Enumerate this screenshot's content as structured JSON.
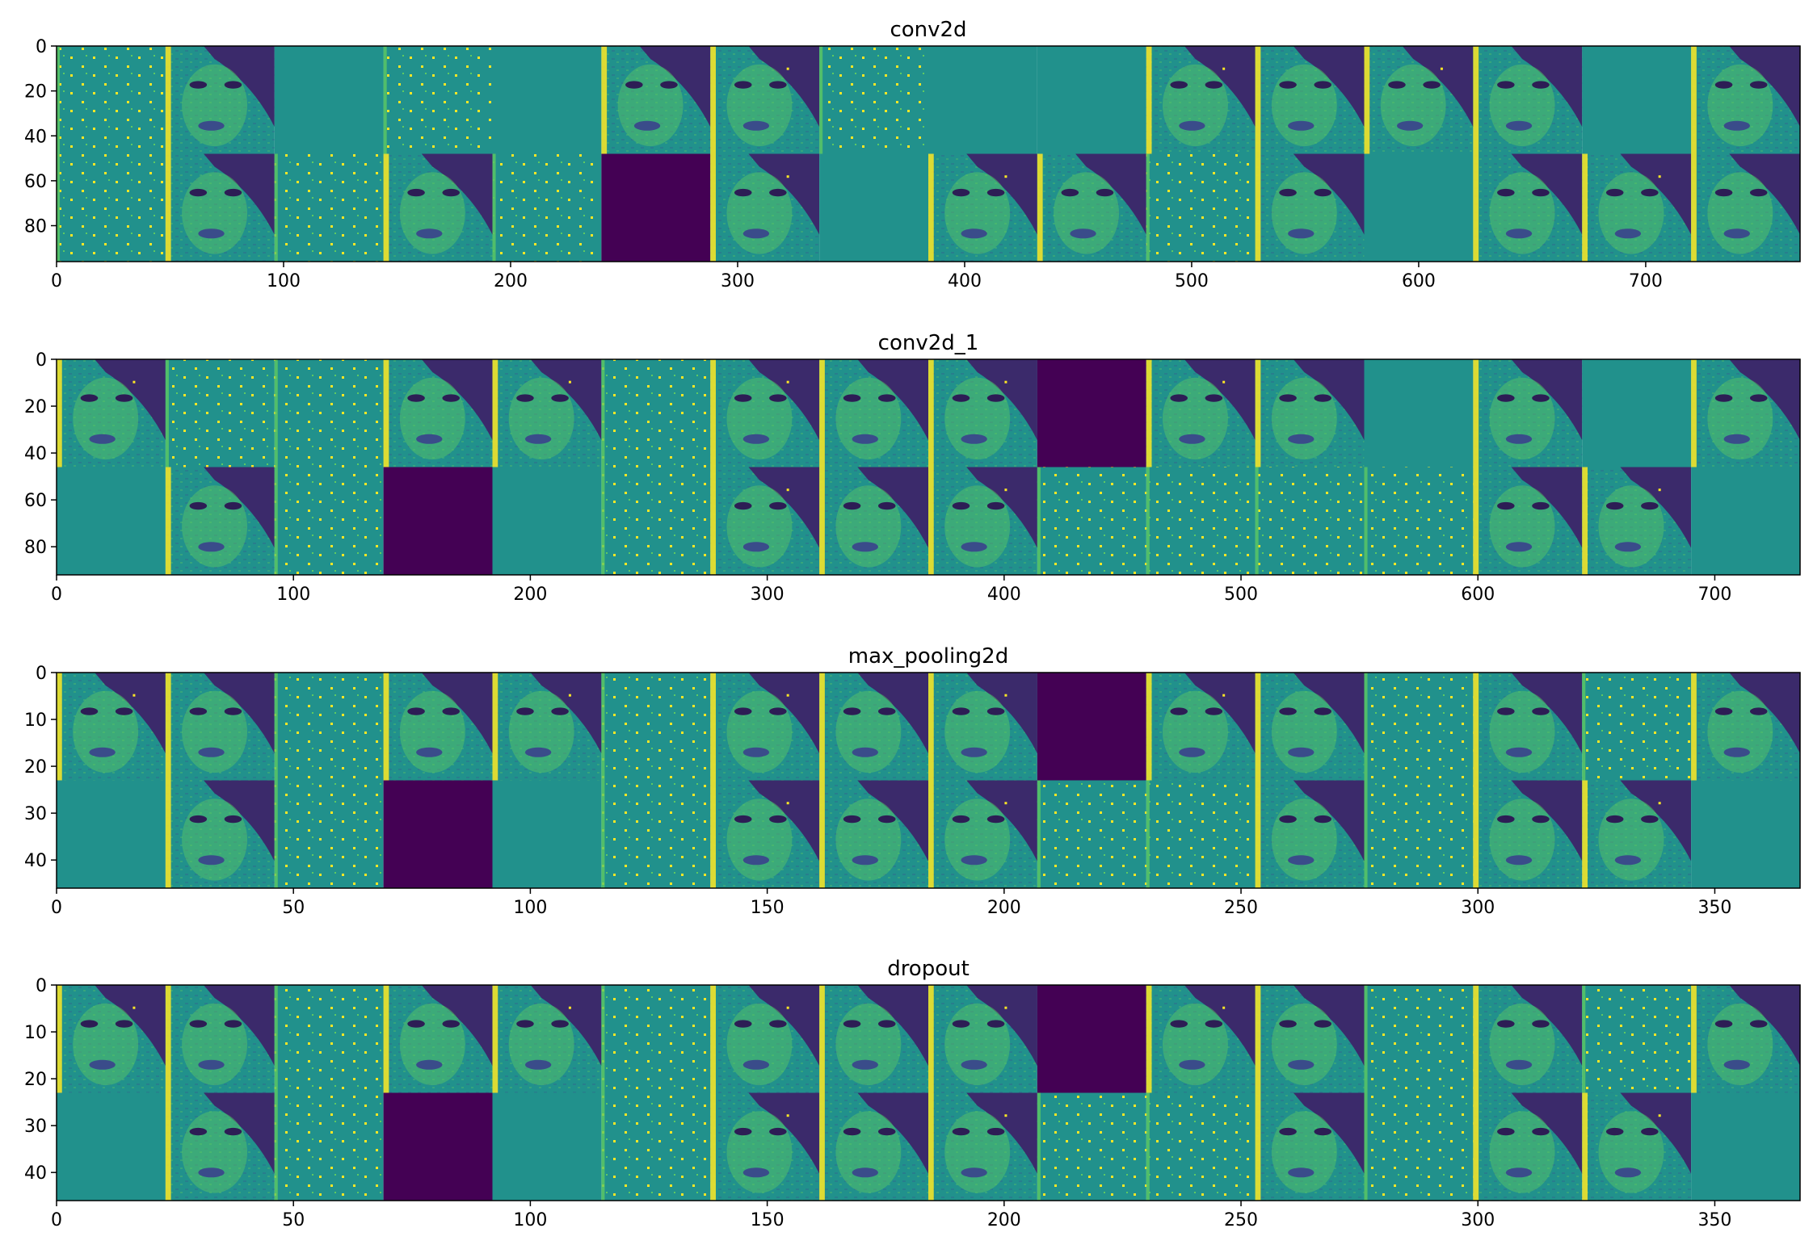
{
  "figure": {
    "colormap": [
      "#440154",
      "#3b528b",
      "#21918c",
      "#5ec962",
      "#fde725"
    ],
    "background": "#ffffff"
  },
  "chart_data": [
    {
      "type": "heatmap",
      "title": "conv2d",
      "grid": false,
      "tile_size": 48,
      "tiles_per_row": 16,
      "rows": 2,
      "xlim": [
        0,
        768
      ],
      "ylim": [
        96,
        0
      ],
      "xticks": [
        0,
        100,
        200,
        300,
        400,
        500,
        600,
        700
      ],
      "yticks": [
        0,
        20,
        40,
        60,
        80
      ],
      "tiles": [
        [
          "sparse",
          "face",
          "flat",
          "sparse",
          "flat",
          "face",
          "face",
          "sparse",
          "flat",
          "flat",
          "face",
          "face",
          "face",
          "face",
          "flat",
          "face"
        ],
        [
          "sparse",
          "face",
          "sparse",
          "face",
          "sparse",
          "dark",
          "face",
          "flat",
          "face",
          "face",
          "sparse",
          "face",
          "flat",
          "face",
          "face",
          "face"
        ]
      ]
    },
    {
      "type": "heatmap",
      "title": "conv2d_1",
      "grid": false,
      "tile_size": 46,
      "tiles_per_row": 16,
      "rows": 2,
      "xlim": [
        0,
        736
      ],
      "ylim": [
        92,
        0
      ],
      "xticks": [
        0,
        100,
        200,
        300,
        400,
        500,
        600,
        700
      ],
      "yticks": [
        0,
        20,
        40,
        60,
        80
      ],
      "tiles": [
        [
          "face",
          "sparse",
          "sparse",
          "face",
          "face",
          "sparse",
          "face",
          "face",
          "face",
          "dark",
          "face",
          "face",
          "flat",
          "face",
          "flat",
          "face"
        ],
        [
          "flat",
          "face",
          "sparse",
          "dark",
          "flat",
          "sparse",
          "face",
          "face",
          "face",
          "sparse",
          "sparse",
          "sparse",
          "sparse",
          "face",
          "face",
          "flat"
        ]
      ]
    },
    {
      "type": "heatmap",
      "title": "max_pooling2d",
      "grid": false,
      "tile_size": 23,
      "tiles_per_row": 16,
      "rows": 2,
      "xlim": [
        0,
        368
      ],
      "ylim": [
        46,
        0
      ],
      "xticks": [
        0,
        50,
        100,
        150,
        200,
        250,
        300,
        350
      ],
      "yticks": [
        0,
        10,
        20,
        30,
        40
      ],
      "tiles": [
        [
          "face",
          "face",
          "sparse",
          "face",
          "face",
          "sparse",
          "face",
          "face",
          "face",
          "dark",
          "face",
          "face",
          "sparse",
          "face",
          "sparse",
          "face"
        ],
        [
          "flat",
          "face",
          "sparse",
          "dark",
          "flat",
          "sparse",
          "face",
          "face",
          "face",
          "sparse",
          "sparse",
          "face",
          "sparse",
          "face",
          "face",
          "flat"
        ]
      ]
    },
    {
      "type": "heatmap",
      "title": "dropout",
      "grid": false,
      "tile_size": 23,
      "tiles_per_row": 16,
      "rows": 2,
      "xlim": [
        0,
        368
      ],
      "ylim": [
        46,
        0
      ],
      "xticks": [
        0,
        50,
        100,
        150,
        200,
        250,
        300,
        350
      ],
      "yticks": [
        0,
        10,
        20,
        30,
        40
      ],
      "tiles": [
        [
          "face",
          "face",
          "sparse",
          "face",
          "face",
          "sparse",
          "face",
          "face",
          "face",
          "dark",
          "face",
          "face",
          "sparse",
          "face",
          "sparse",
          "face"
        ],
        [
          "flat",
          "face",
          "sparse",
          "dark",
          "flat",
          "sparse",
          "face",
          "face",
          "face",
          "sparse",
          "sparse",
          "face",
          "sparse",
          "face",
          "face",
          "flat"
        ]
      ]
    }
  ]
}
